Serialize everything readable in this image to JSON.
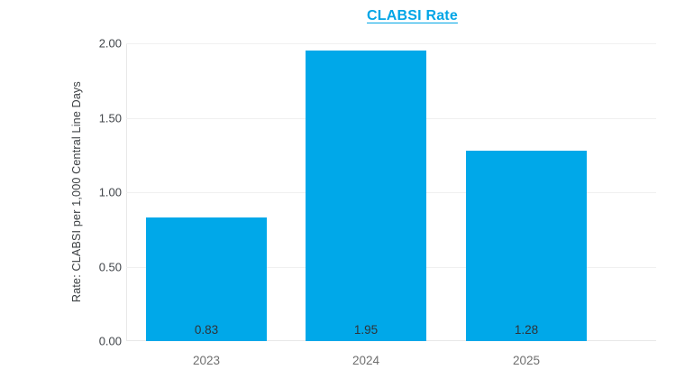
{
  "chart_data": {
    "type": "bar",
    "title": "CLABSI Rate",
    "xlabel": "",
    "ylabel": "Rate: CLABSI per 1,000 Central Line Days",
    "categories": [
      "2023",
      "2024",
      "2025"
    ],
    "values": [
      0.83,
      1.95,
      1.28
    ],
    "data_labels": [
      "0.83",
      "1.95",
      "1.28"
    ],
    "ylim": [
      0,
      2.0
    ],
    "yticks": [
      {
        "label": "0.00",
        "value": 0.0
      },
      {
        "label": "0.50",
        "value": 0.5
      },
      {
        "label": "1.00",
        "value": 1.0
      },
      {
        "label": "1.50",
        "value": 1.5
      },
      {
        "label": "2.00",
        "value": 2.0
      }
    ],
    "grid": true,
    "legend": "none",
    "colors": {
      "bar": "#00a8e9",
      "title": "#00a5e6",
      "axis_text": "#41454a",
      "ylabel_text": "#3c4043",
      "category_text": "#6f6f6f",
      "data_label_text": "#2e3338",
      "gridline": "#f0f0f0",
      "axis_line": "#e8e8e8"
    }
  }
}
